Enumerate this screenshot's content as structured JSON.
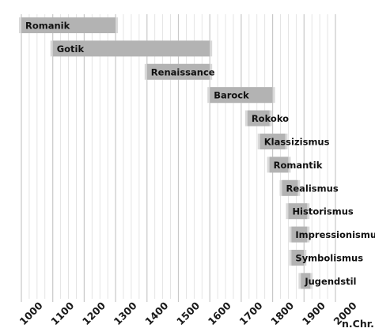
{
  "chart_data": {
    "type": "bar",
    "orientation": "horizontal-timeline",
    "x_unit": "n.Chr.",
    "xlim": [
      1000,
      2000
    ],
    "xticks": [
      1000,
      1100,
      1200,
      1300,
      1400,
      1500,
      1600,
      1700,
      1800,
      1900,
      2000
    ],
    "minor_tick_step": 25,
    "grid": true,
    "bar_color": "#b3b3b3",
    "bar_fade_color": "#d9d9d9",
    "bars": [
      {
        "label": "Romanik",
        "start": 1000,
        "end": 1300
      },
      {
        "label": "Gotik",
        "start": 1100,
        "end": 1600
      },
      {
        "label": "Renaissance",
        "start": 1400,
        "end": 1600
      },
      {
        "label": "Barock",
        "start": 1600,
        "end": 1800
      },
      {
        "label": "Rokoko",
        "start": 1720,
        "end": 1790
      },
      {
        "label": "Klassizismus",
        "start": 1760,
        "end": 1840
      },
      {
        "label": "Romantik",
        "start": 1790,
        "end": 1850
      },
      {
        "label": "Realismus",
        "start": 1830,
        "end": 1880
      },
      {
        "label": "Historismus",
        "start": 1850,
        "end": 1910
      },
      {
        "label": "Impressionismus",
        "start": 1860,
        "end": 1910
      },
      {
        "label": "Symbolismus",
        "start": 1860,
        "end": 1900
      },
      {
        "label": "Jugendstil",
        "start": 1890,
        "end": 1920
      }
    ]
  }
}
